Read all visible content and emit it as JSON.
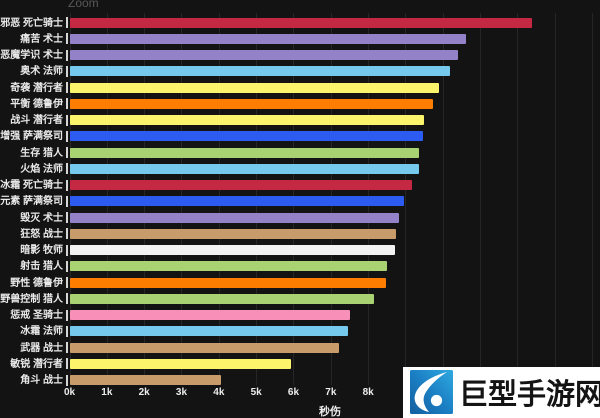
{
  "controls": {
    "zoom_label": "Zoom"
  },
  "chart_data": {
    "type": "bar",
    "orientation": "horizontal",
    "title": "",
    "xlabel": "秒伤",
    "ylabel": "",
    "xlim": [
      0,
      14000
    ],
    "grid": true,
    "background": "#131313",
    "x_tick_labels": [
      "0k",
      "1k",
      "2k",
      "3k",
      "4k",
      "5k",
      "6k",
      "7k",
      "8k"
    ],
    "categories": [
      "邪恶 死亡骑士",
      "痛苦 术士",
      "恶魔学识 术士",
      "奥术 法师",
      "奇袭 潜行者",
      "平衡 德鲁伊",
      "战斗 潜行者",
      "增强 萨满祭司",
      "生存 猎人",
      "火焰 法师",
      "冰霜 死亡骑士",
      "元素 萨满祭司",
      "毁灭 术士",
      "狂怒 战士",
      "暗影 牧师",
      "射击 猎人",
      "野性 德鲁伊",
      "野兽控制 猎人",
      "惩戒 圣骑士",
      "冰霜 法师",
      "武器 战士",
      "敏锐 潜行者",
      "角斗 战士"
    ],
    "values": [
      12380,
      10620,
      10390,
      10190,
      9880,
      9720,
      9470,
      9450,
      9360,
      9350,
      9160,
      8940,
      8810,
      8730,
      8710,
      8480,
      8460,
      8150,
      7510,
      7440,
      7210,
      5920,
      4050
    ],
    "colors": [
      "#C42843",
      "#9482C9",
      "#9482C9",
      "#74C9ED",
      "#FCF46B",
      "#FC7D00",
      "#FCF46B",
      "#2C5BF2",
      "#A9D272",
      "#74C9ED",
      "#C42843",
      "#2C5BF2",
      "#9482C9",
      "#C89B6B",
      "#F2F2F2",
      "#A9D272",
      "#FC7D00",
      "#A9D272",
      "#F78FB9",
      "#74C9ED",
      "#C89B6B",
      "#FCF46B",
      "#C89B6B"
    ]
  },
  "watermark": {
    "text": "巨型手游网",
    "logo": "giant-mobile-game-logo",
    "bg_color": "#ffffff",
    "logo_color_dark": "#135f9f",
    "logo_color_light": "#2fa9e0"
  }
}
